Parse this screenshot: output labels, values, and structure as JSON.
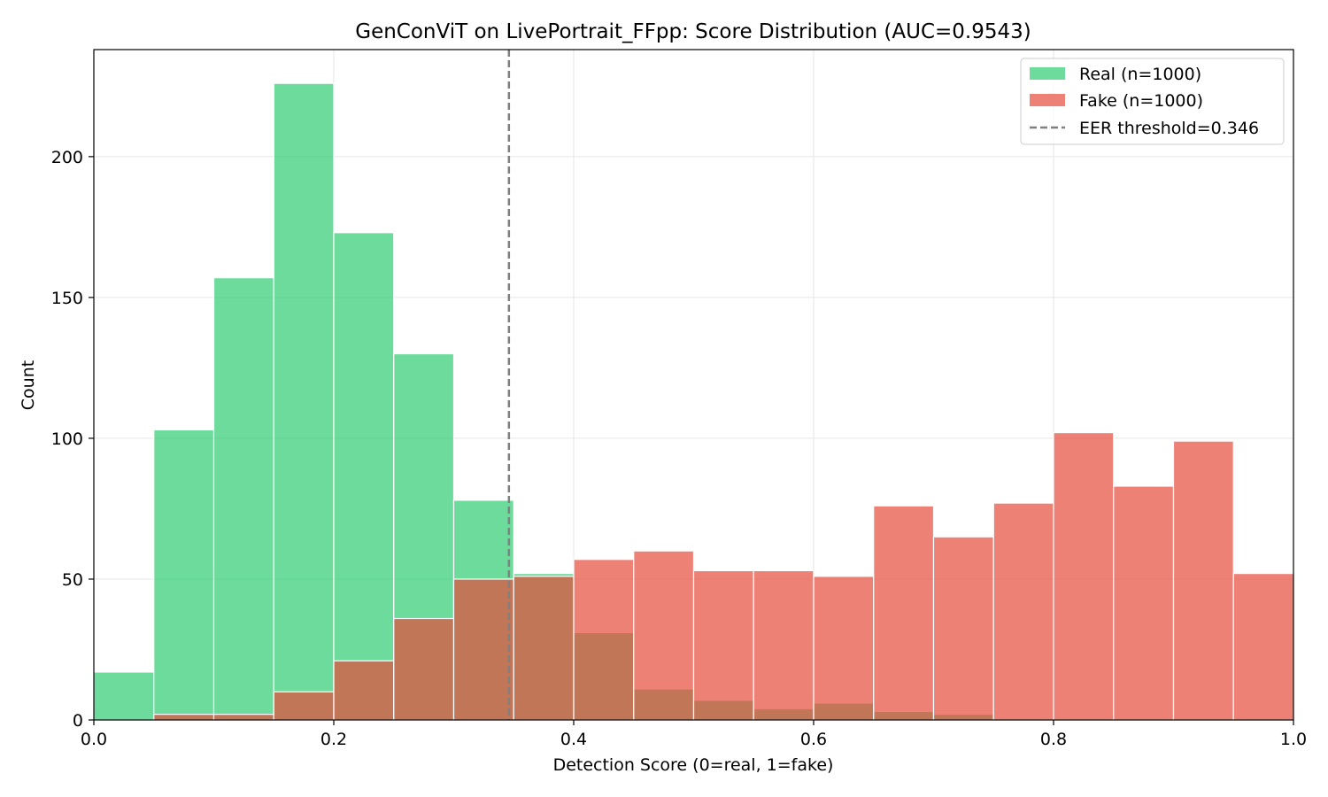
{
  "chart_data": {
    "type": "histogram",
    "title": "GenConViT on LivePortrait_FFpp: Score Distribution (AUC=0.9543)",
    "xlabel": "Detection Score (0=real, 1=fake)",
    "ylabel": "Count",
    "xlim": [
      0.0,
      1.0
    ],
    "ylim": [
      0,
      238
    ],
    "xticks": [
      "0.0",
      "0.2",
      "0.4",
      "0.6",
      "0.8",
      "1.0"
    ],
    "xtick_values": [
      0.0,
      0.2,
      0.4,
      0.6,
      0.8,
      1.0
    ],
    "yticks": [
      "0",
      "50",
      "100",
      "150",
      "200"
    ],
    "ytick_values": [
      0,
      50,
      100,
      150,
      200
    ],
    "grid": true,
    "legend_position": "top-right",
    "bin_edges": [
      0.0,
      0.05,
      0.1,
      0.15,
      0.2,
      0.25,
      0.3,
      0.35,
      0.4,
      0.45,
      0.5,
      0.55,
      0.6,
      0.65,
      0.7,
      0.75,
      0.8,
      0.85,
      0.9,
      0.95,
      1.0
    ],
    "series": [
      {
        "name": "Real",
        "legend_label": "Real (n=1000)",
        "color": "#2ecc71",
        "values": [
          17,
          103,
          157,
          226,
          173,
          130,
          78,
          52,
          31,
          11,
          7,
          4,
          6,
          3,
          2,
          0,
          0,
          0,
          0,
          0
        ]
      },
      {
        "name": "Fake",
        "legend_label": "Fake (n=1000)",
        "color": "#e74c3c",
        "values": [
          0,
          2,
          2,
          10,
          21,
          36,
          50,
          51,
          57,
          60,
          53,
          53,
          51,
          76,
          65,
          77,
          102,
          83,
          99,
          52
        ]
      }
    ],
    "threshold": {
      "value": 0.346,
      "legend_label": "EER threshold=0.346",
      "color": "#808080"
    }
  }
}
